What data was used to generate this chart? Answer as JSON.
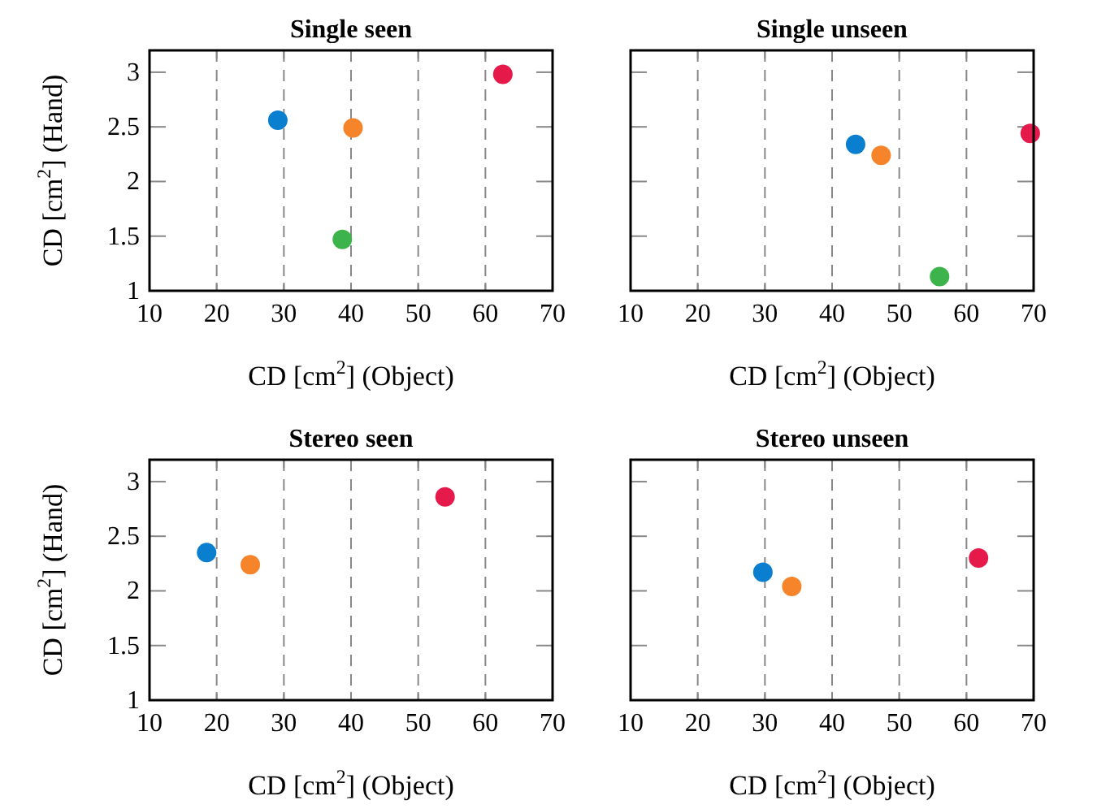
{
  "chart_data": [
    {
      "type": "scatter",
      "title": "Single seen",
      "xlabel": "CD [cm$^{2}$] (Object)",
      "ylabel": "CD [cm$^{2}$] (Hand)",
      "xlim": [
        10,
        70
      ],
      "xticks": [
        10,
        20,
        30,
        40,
        50,
        60,
        70
      ],
      "ylim": [
        1,
        3.2
      ],
      "yticks": [
        1,
        1.5,
        2,
        2.5,
        3
      ],
      "grid": "x",
      "marker": "circle",
      "series": [
        {
          "color": "#0a7fd0",
          "x": [
            29.1
          ],
          "values": [
            2.56
          ]
        },
        {
          "color": "#f5842a",
          "x": [
            40.3
          ],
          "values": [
            2.49
          ]
        },
        {
          "color": "#3cb44b",
          "x": [
            38.7
          ],
          "values": [
            1.47
          ]
        },
        {
          "color": "#e6194b",
          "x": [
            62.6
          ],
          "values": [
            2.98
          ]
        }
      ]
    },
    {
      "type": "scatter",
      "title": "Single unseen",
      "xlabel": "CD [cm$^{2}$] (Object)",
      "xlim": [
        10,
        70
      ],
      "xticks": [
        10,
        20,
        30,
        40,
        50,
        60,
        70
      ],
      "ylim": [
        1,
        3.2
      ],
      "yticks": [
        1,
        1.5,
        2,
        2.5,
        3
      ],
      "grid": "x",
      "marker": "circle",
      "tick_labels": "x",
      "series": [
        {
          "color": "#0a7fd0",
          "x": [
            43.5
          ],
          "values": [
            2.34
          ]
        },
        {
          "color": "#f5842a",
          "x": [
            47.3
          ],
          "values": [
            2.24
          ]
        },
        {
          "color": "#3cb44b",
          "x": [
            56
          ],
          "values": [
            1.13
          ]
        },
        {
          "color": "#e6194b",
          "x": [
            69.5
          ],
          "values": [
            2.44
          ]
        }
      ]
    },
    {
      "type": "scatter",
      "title": "Stereo seen",
      "xlabel": "CD [cm$^{2}$] (Object)",
      "ylabel": "CD [cm$^{2}$] (Hand)",
      "xlim": [
        10,
        70
      ],
      "xticks": [
        10,
        20,
        30,
        40,
        50,
        60,
        70
      ],
      "ylim": [
        1,
        3.2
      ],
      "yticks": [
        1,
        1.5,
        2,
        2.5,
        3
      ],
      "grid": "x",
      "marker": "circle",
      "series": [
        {
          "color": "#0a7fd0",
          "x": [
            18.5
          ],
          "values": [
            2.35
          ]
        },
        {
          "color": "#f5842a",
          "x": [
            25
          ],
          "values": [
            2.24
          ]
        },
        {
          "color": "#e6194b",
          "x": [
            54
          ],
          "values": [
            2.86
          ]
        }
      ]
    },
    {
      "type": "scatter",
      "title": "Stereo unseen",
      "xlabel": "CD [cm$^{2}$] (Object)",
      "xlim": [
        10,
        70
      ],
      "xticks": [
        10,
        20,
        30,
        40,
        50,
        60,
        70
      ],
      "ylim": [
        1,
        3.2
      ],
      "yticks": [
        1,
        1.5,
        2,
        2.5,
        3
      ],
      "grid": "x",
      "marker": "circle",
      "tick_labels": "x",
      "series": [
        {
          "color": "#0a7fd0",
          "x": [
            29.7
          ],
          "values": [
            2.17
          ]
        },
        {
          "color": "#f5842a",
          "x": [
            34
          ],
          "values": [
            2.04
          ]
        },
        {
          "color": "#e6194b",
          "x": [
            61.8
          ],
          "values": [
            2.3
          ]
        }
      ]
    }
  ]
}
